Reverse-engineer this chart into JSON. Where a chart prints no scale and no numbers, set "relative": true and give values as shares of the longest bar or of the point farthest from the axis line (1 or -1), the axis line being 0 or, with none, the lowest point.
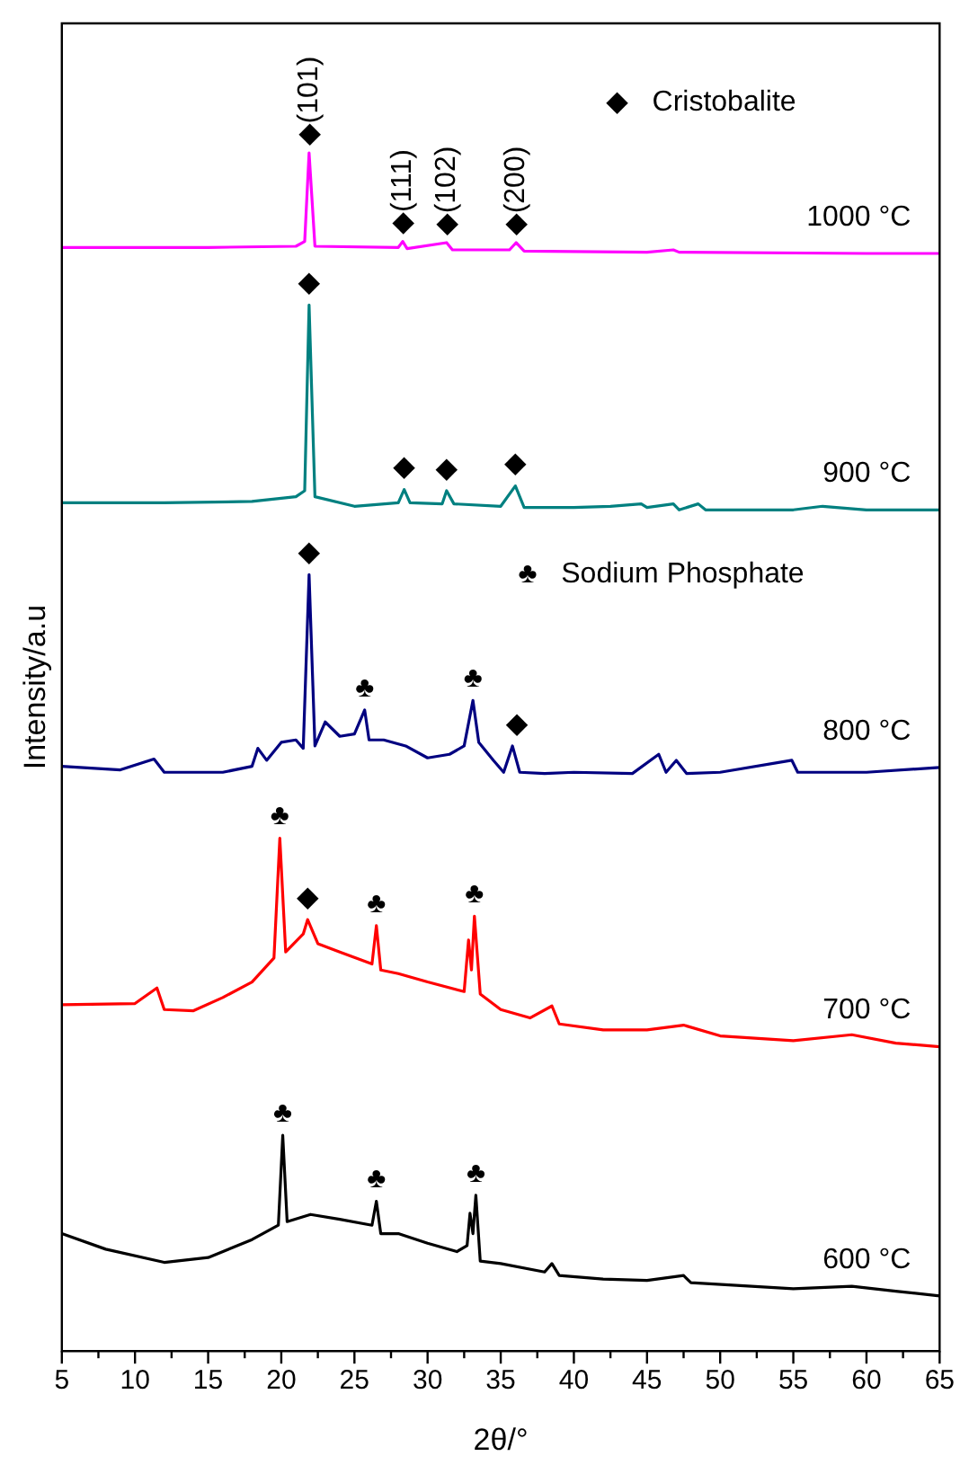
{
  "chart_data": {
    "type": "line",
    "relative": true,
    "xlabel": "2θ/°",
    "ylabel": "Intensity/a.u",
    "xlim": [
      5,
      65
    ],
    "xticks": [
      5,
      {
        "value": 7.5,
        "label": null
      },
      10,
      {
        "value": 12.5,
        "label": null
      },
      15,
      {
        "value": 17.5,
        "label": null
      },
      20,
      {
        "value": 22.5,
        "label": null
      },
      25,
      {
        "value": 27.5,
        "label": null
      },
      30,
      {
        "value": 32.5,
        "label": null
      },
      35,
      {
        "value": 37.5,
        "label": null
      },
      40,
      {
        "value": 42.5,
        "label": null
      },
      45,
      {
        "value": 47.5,
        "label": null
      },
      50,
      {
        "value": 52.5,
        "label": null
      },
      55,
      {
        "value": 57.5,
        "label": null
      },
      60,
      {
        "value": 62.5,
        "label": null
      },
      65
    ],
    "grid": false,
    "legend": false,
    "marker": "none",
    "line_style": "solid",
    "series": [
      {
        "name": "1000 °C",
        "color": "#ff00ff",
        "x": [
          5,
          15,
          21,
          21.6,
          21.9,
          22.3,
          28,
          28.3,
          28.6,
          31.3,
          31.7,
          35.6,
          36.05,
          36.6,
          45,
          46.8,
          47.2,
          60,
          65
        ],
        "values": [
          0.921,
          0.921,
          0.922,
          0.926,
          1.0,
          0.922,
          0.921,
          0.926,
          0.92,
          0.925,
          0.919,
          0.919,
          0.925,
          0.918,
          0.917,
          0.919,
          0.917,
          0.916,
          0.916
        ]
      },
      {
        "name": "900 °C",
        "color": "#008080",
        "x": [
          5,
          12,
          18,
          21,
          21.6,
          21.9,
          22.3,
          25,
          28,
          28.4,
          28.8,
          31,
          31.3,
          31.8,
          35,
          36,
          36.6,
          40,
          42.5,
          44.6,
          45,
          46.8,
          47.2,
          48.5,
          49,
          55,
          57,
          60,
          65
        ],
        "values": [
          0.708,
          0.708,
          0.709,
          0.713,
          0.718,
          0.873,
          0.713,
          0.705,
          0.708,
          0.719,
          0.708,
          0.707,
          0.718,
          0.707,
          0.705,
          0.722,
          0.704,
          0.704,
          0.705,
          0.707,
          0.704,
          0.707,
          0.702,
          0.707,
          0.702,
          0.702,
          0.705,
          0.702,
          0.702
        ]
      },
      {
        "name": "800 °C",
        "color": "#000080",
        "x": [
          5,
          9,
          11.3,
          12,
          16,
          18,
          18.4,
          19,
          20,
          21,
          21.5,
          21.9,
          22.3,
          23,
          24,
          25,
          25.7,
          26,
          27,
          28.5,
          30,
          31.5,
          32.5,
          33.1,
          33.5,
          34.5,
          35.2,
          35.8,
          36.3,
          38,
          40,
          44,
          45.8,
          46.3,
          47,
          47.7,
          50,
          54.9,
          55.3,
          60,
          65
        ],
        "values": [
          0.488,
          0.485,
          0.494,
          0.483,
          0.483,
          0.488,
          0.503,
          0.493,
          0.508,
          0.51,
          0.503,
          0.648,
          0.505,
          0.525,
          0.513,
          0.515,
          0.535,
          0.51,
          0.51,
          0.505,
          0.495,
          0.498,
          0.505,
          0.543,
          0.508,
          0.493,
          0.483,
          0.505,
          0.483,
          0.482,
          0.483,
          0.482,
          0.498,
          0.483,
          0.493,
          0.482,
          0.483,
          0.493,
          0.483,
          0.483,
          0.487
        ]
      },
      {
        "name": "700 °C",
        "color": "#ff0000",
        "x": [
          5,
          10,
          11.5,
          12,
          14,
          16,
          18,
          19.5,
          19.9,
          20.3,
          21.5,
          21.8,
          22.5,
          24,
          26.2,
          26.5,
          26.8,
          28,
          30,
          32.5,
          32.8,
          33,
          33.2,
          33.6,
          35,
          37,
          38.5,
          39,
          42,
          45,
          47.5,
          50,
          55,
          59,
          62,
          65
        ],
        "values": [
          0.289,
          0.29,
          0.303,
          0.285,
          0.284,
          0.295,
          0.308,
          0.328,
          0.428,
          0.333,
          0.348,
          0.36,
          0.34,
          0.333,
          0.323,
          0.355,
          0.318,
          0.315,
          0.308,
          0.3,
          0.343,
          0.318,
          0.363,
          0.298,
          0.285,
          0.278,
          0.288,
          0.273,
          0.268,
          0.268,
          0.272,
          0.263,
          0.259,
          0.264,
          0.257,
          0.254
        ]
      },
      {
        "name": "600 °C",
        "color": "#000000",
        "x": [
          5,
          8,
          12,
          15,
          18,
          19.8,
          20.1,
          20.4,
          22,
          24,
          26.2,
          26.5,
          26.8,
          28,
          30,
          32,
          32.7,
          32.9,
          33.1,
          33.3,
          33.6,
          35,
          38,
          38.5,
          39,
          42,
          45,
          47.5,
          48,
          55,
          59,
          62,
          65
        ],
        "values": [
          0.098,
          0.085,
          0.074,
          0.078,
          0.093,
          0.105,
          0.18,
          0.108,
          0.114,
          0.11,
          0.105,
          0.125,
          0.098,
          0.098,
          0.09,
          0.083,
          0.088,
          0.115,
          0.098,
          0.13,
          0.075,
          0.073,
          0.066,
          0.073,
          0.063,
          0.06,
          0.059,
          0.063,
          0.057,
          0.052,
          0.054,
          0.05,
          0.046
        ]
      }
    ],
    "annotations": [
      "◆   Cristobalite",
      "♣   Sodium Phosphate",
      {
        "text": "◆(101)",
        "x": 21.9,
        "y": 1.0
      },
      {
        "text": "◆(111)",
        "x": 28.3,
        "y": 0.926
      },
      {
        "text": "◆(102)",
        "x": 31.3,
        "y": 0.925
      },
      {
        "text": "◆(200)",
        "x": 36.05,
        "y": 0.925
      },
      {
        "text": "◆",
        "x": 21.9,
        "y": 0.873
      },
      {
        "text": "◆",
        "x": 28.4,
        "y": 0.719
      },
      {
        "text": "◆",
        "x": 31.3,
        "y": 0.718
      },
      {
        "text": "◆",
        "x": 36,
        "y": 0.722
      },
      {
        "text": "◆",
        "x": 21.9,
        "y": 0.648
      },
      {
        "text": "♣",
        "x": 25.7,
        "y": 0.535
      },
      {
        "text": "♣",
        "x": 33.1,
        "y": 0.543
      },
      {
        "text": "◆",
        "x": 36.1,
        "y": 0.505
      },
      {
        "text": "♣",
        "x": 19.9,
        "y": 0.428
      },
      {
        "text": "◆",
        "x": 21.8,
        "y": 0.36
      },
      {
        "text": "♣",
        "x": 26.5,
        "y": 0.355
      },
      {
        "text": "♣",
        "x": 33.2,
        "y": 0.363
      },
      {
        "text": "♣",
        "x": 20.1,
        "y": 0.18
      },
      {
        "text": "♣",
        "x": 26.5,
        "y": 0.125
      },
      {
        "text": "♣",
        "x": 33.3,
        "y": 0.13
      }
    ]
  }
}
